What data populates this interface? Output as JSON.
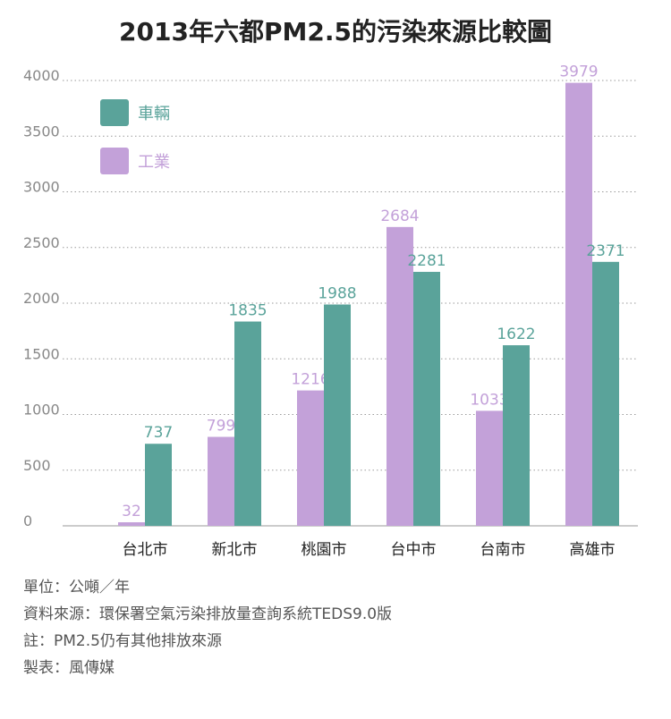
{
  "chart_data": {
    "type": "bar",
    "title": "2013年六都PM2.5的污染來源比較圖",
    "categories": [
      "台北市",
      "新北市",
      "桃園市",
      "台中市",
      "台南市",
      "高雄市"
    ],
    "series": [
      {
        "name": "工業",
        "color": "#c3a1d9",
        "values": [
          32,
          799,
          1216,
          2684,
          1033,
          3979
        ]
      },
      {
        "name": "車輛",
        "color": "#5aa39a",
        "values": [
          737,
          1835,
          1988,
          2281,
          1622,
          2371
        ]
      }
    ],
    "legend": [
      {
        "name": "車輛",
        "color": "#5aa39a"
      },
      {
        "name": "工業",
        "color": "#c3a1d9"
      }
    ],
    "legend_position": "top-left",
    "yticks": [
      0,
      500,
      1000,
      1500,
      2000,
      2500,
      3000,
      3500,
      4000
    ],
    "ylim": [
      0,
      4000
    ],
    "grid": true,
    "xlabel": "",
    "ylabel": ""
  },
  "notes": {
    "unit": "單位：公噸／年",
    "source": "資料來源：環保署空氣污染排放量查詢系統TEDS9.0版",
    "note": "註：PM2.5仍有其他排放來源",
    "made_by": "製表：風傳媒"
  }
}
